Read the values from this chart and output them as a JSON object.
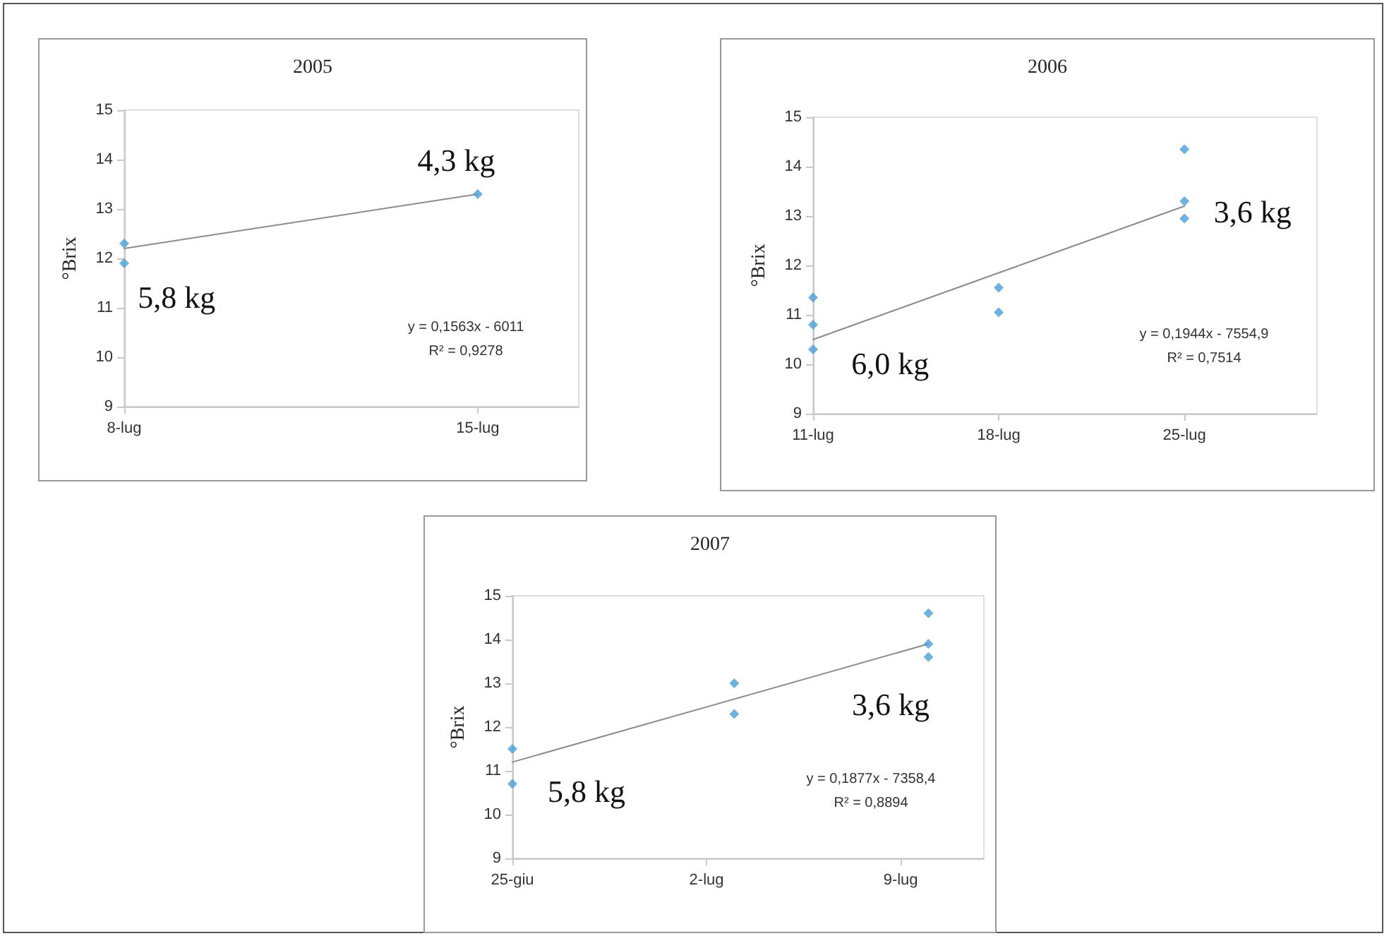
{
  "chart_data": [
    {
      "type": "scatter",
      "title": "2005",
      "ylabel": "°Brix",
      "xlim": [
        "--07-08",
        "--07-17"
      ],
      "xticks": [
        {
          "value": "--07-08",
          "label": "8-lug"
        },
        {
          "value": "--07-15",
          "label": "15-lug"
        }
      ],
      "ylim": [
        9,
        15
      ],
      "yticks": [
        9,
        10,
        11,
        12,
        13,
        14,
        15
      ],
      "series": [
        {
          "type": "scatter",
          "marker": "diamond",
          "color": "#4a9fd8",
          "x": [
            "--07-08",
            "--07-08",
            "--07-15"
          ],
          "values": [
            12.3,
            11.9,
            13.3
          ]
        },
        {
          "type": "line",
          "marker": "none",
          "color": "#8c8c8c",
          "x": [
            "--07-08",
            "--07-15"
          ],
          "values": [
            12.2,
            13.3
          ]
        }
      ],
      "annotations": [
        "5,8 kg",
        "4,3 kg",
        "y = 0,1563x - 6011",
        "R² = 0,9278"
      ]
    },
    {
      "type": "scatter",
      "title": "2006",
      "ylabel": "°Brix",
      "xlim": [
        "--07-11",
        "--07-30"
      ],
      "xticks": [
        {
          "value": "--07-11",
          "label": "11-lug"
        },
        {
          "value": "--07-18",
          "label": "18-lug"
        },
        {
          "value": "--07-25",
          "label": "25-lug"
        }
      ],
      "ylim": [
        9,
        15
      ],
      "yticks": [
        9,
        10,
        11,
        12,
        13,
        14,
        15
      ],
      "series": [
        {
          "type": "scatter",
          "marker": "diamond",
          "color": "#4a9fd8",
          "x": [
            "--07-11",
            "--07-11",
            "--07-11",
            "--07-18",
            "--07-18",
            "--07-25",
            "--07-25",
            "--07-25"
          ],
          "values": [
            11.35,
            10.8,
            10.3,
            11.55,
            11.05,
            14.35,
            13.3,
            12.95
          ]
        },
        {
          "type": "line",
          "marker": "none",
          "color": "#8c8c8c",
          "x": [
            "--07-11",
            "--07-25"
          ],
          "values": [
            10.5,
            13.2
          ]
        }
      ],
      "annotations": [
        "6,0 kg",
        "3,6 kg",
        "y = 0,1944x - 7554,9",
        "R² = 0,7514"
      ]
    },
    {
      "type": "scatter",
      "title": "2007",
      "ylabel": "°Brix",
      "xlim": [
        "--06-25",
        "--07-12"
      ],
      "xticks": [
        {
          "value": "--06-25",
          "label": "25-giu"
        },
        {
          "value": "--07-02",
          "label": "2-lug"
        },
        {
          "value": "--07-09",
          "label": "9-lug"
        }
      ],
      "ylim": [
        9,
        15
      ],
      "yticks": [
        9,
        10,
        11,
        12,
        13,
        14,
        15
      ],
      "series": [
        {
          "type": "scatter",
          "marker": "diamond",
          "color": "#4a9fd8",
          "x": [
            "--06-25",
            "--06-25",
            "--07-03",
            "--07-03",
            "--07-10",
            "--07-10",
            "--07-10"
          ],
          "values": [
            11.5,
            10.7,
            13.0,
            12.3,
            14.6,
            13.9,
            13.6
          ]
        },
        {
          "type": "line",
          "marker": "none",
          "color": "#8c8c8c",
          "x": [
            "--06-25",
            "--07-10"
          ],
          "values": [
            11.2,
            13.9
          ]
        }
      ],
      "annotations": [
        "5,8 kg",
        "3,6 kg",
        "y = 0,1877x - 7358,4",
        "R² = 0,8894"
      ]
    }
  ]
}
